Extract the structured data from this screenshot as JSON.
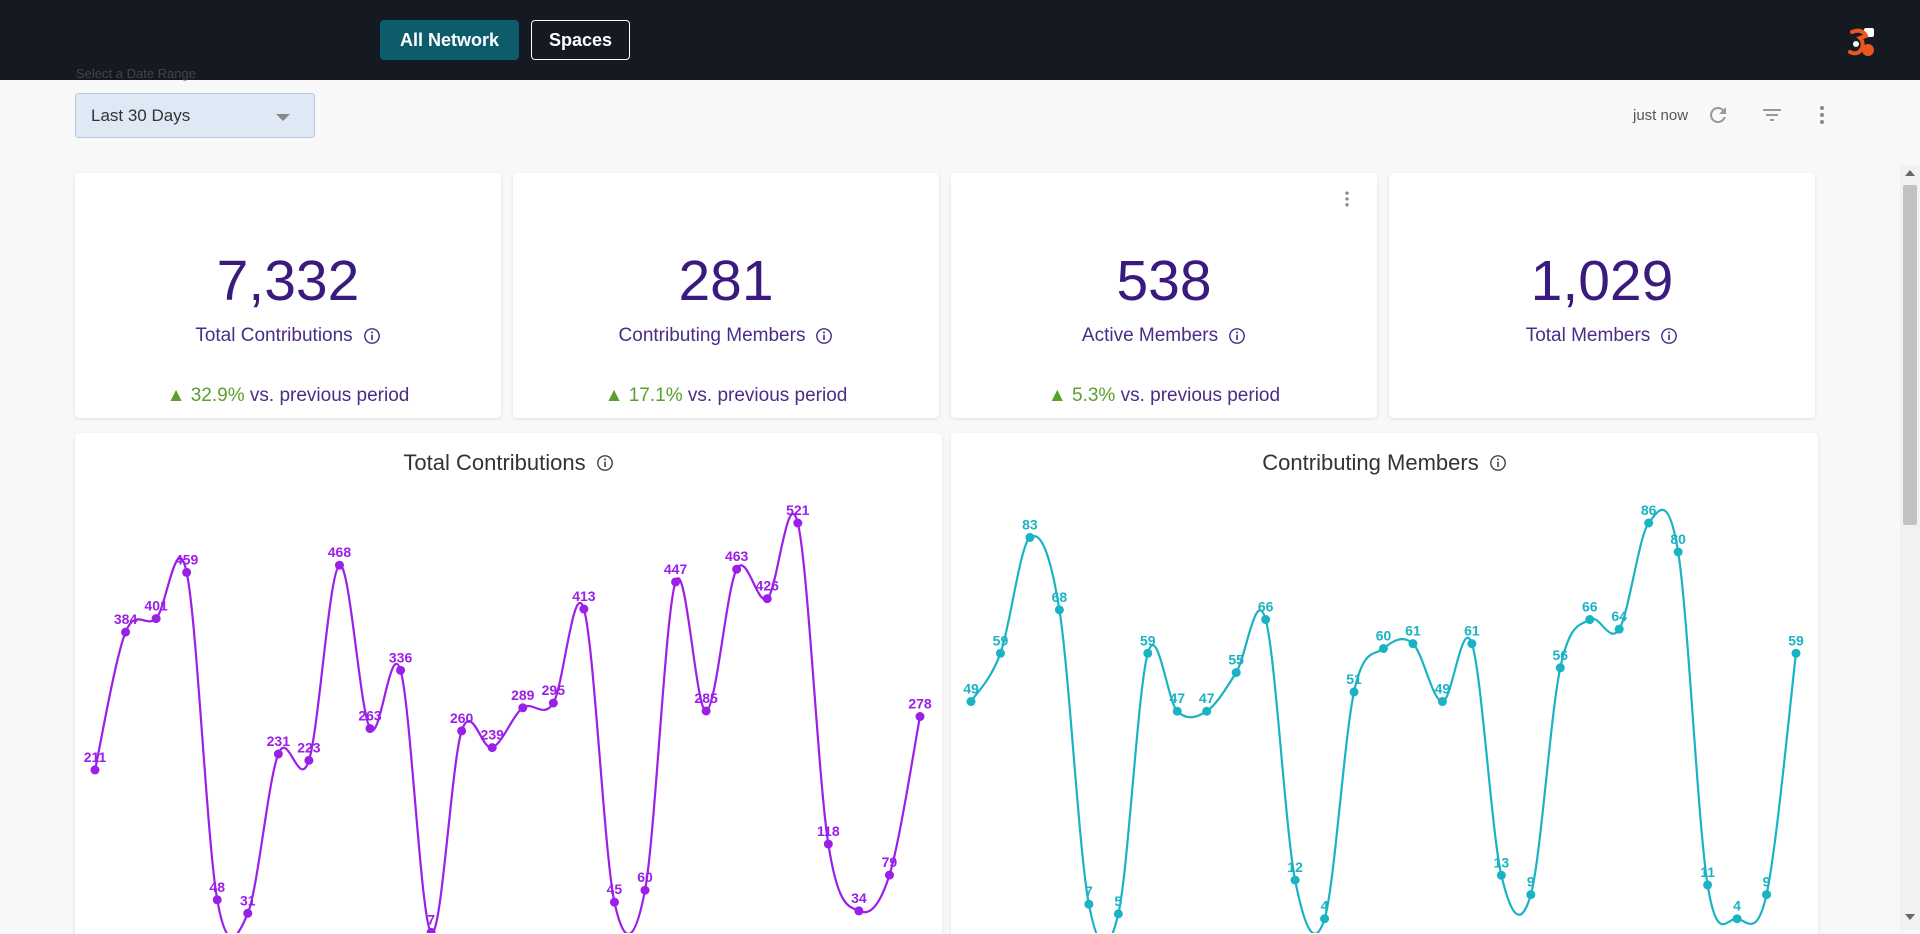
{
  "nav": {
    "all_network": "All Network",
    "spaces": "Spaces",
    "logo_icon": "app-logo-icon"
  },
  "filter": {
    "range_label": "Select a Date Range",
    "range_value": "Last 30 Days",
    "updated": "just now"
  },
  "icons": {
    "refresh": "refresh-icon",
    "filter": "filter-icon",
    "more": "more-vertical-icon",
    "info": "info-icon"
  },
  "colors": {
    "topbar": "#151922",
    "primary_button": "#0d5c6b",
    "kpi_text": "#3b1a7e",
    "positive": "#5aa02c",
    "contrib_series": "#9b1fe8",
    "members_series": "#19b3c4"
  },
  "kpis": [
    {
      "value": "7,332",
      "label": "Total Contributions",
      "change": "▲ 32.9%",
      "change_suffix": " vs. previous period"
    },
    {
      "value": "281",
      "label": "Contributing Members",
      "change": "▲ 17.1%",
      "change_suffix": " vs. previous period"
    },
    {
      "value": "538",
      "label": "Active Members",
      "change": "▲ 5.3%",
      "change_suffix": " vs. previous period"
    },
    {
      "value": "1,029",
      "label": "Total Members",
      "change": "",
      "change_suffix": ""
    }
  ],
  "charts": {
    "contributions_title": "Total Contributions",
    "members_title": "Contributing Members"
  },
  "chart_data": [
    {
      "type": "line",
      "title": "Total Contributions",
      "series": [
        {
          "values": [
            211,
            384,
            401,
            459,
            48,
            31,
            231,
            223,
            468,
            263,
            336,
            7,
            260,
            239,
            289,
            295,
            413,
            45,
            60,
            447,
            285,
            463,
            426,
            521,
            118,
            34,
            79,
            278
          ]
        }
      ],
      "data_labels": true,
      "grid": false
    },
    {
      "type": "line",
      "title": "Contributing Members",
      "series": [
        {
          "values": [
            49,
            59,
            83,
            68,
            7,
            5,
            59,
            47,
            47,
            55,
            66,
            12,
            4,
            51,
            60,
            61,
            49,
            61,
            13,
            9,
            56,
            66,
            64,
            86,
            80,
            11,
            4,
            9,
            59
          ]
        }
      ],
      "data_labels": true,
      "grid": false
    }
  ]
}
